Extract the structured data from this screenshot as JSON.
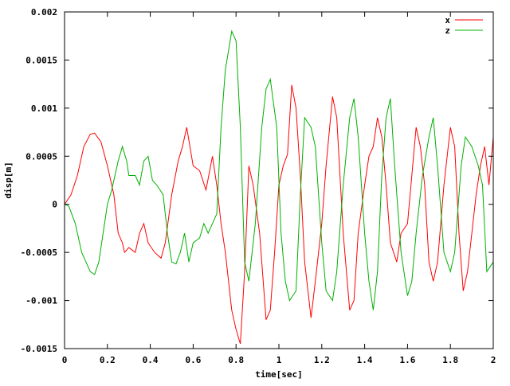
{
  "chart_data": {
    "type": "line",
    "title": "",
    "xlabel": "time[sec]",
    "ylabel": "disp[m]",
    "xlim": [
      0,
      2
    ],
    "ylim": [
      -0.0015,
      0.002
    ],
    "grid": false,
    "legend_position": "top-right",
    "x_ticks": [
      "0",
      "0.2",
      "0.4",
      "0.6",
      "0.8",
      "1",
      "1.2",
      "1.4",
      "1.6",
      "1.8",
      "2"
    ],
    "y_ticks": [
      "-0.0015",
      "-0.001",
      "-0.0005",
      "0",
      "0.0005",
      "0.001",
      "0.0015",
      "0.002"
    ],
    "x_tick_values": [
      0,
      0.2,
      0.4,
      0.6,
      0.8,
      1.0,
      1.2,
      1.4,
      1.6,
      1.8,
      2.0
    ],
    "y_tick_values": [
      -0.0015,
      -0.001,
      -0.0005,
      0,
      0.0005,
      0.001,
      0.0015,
      0.002
    ],
    "series": [
      {
        "name": "x",
        "color": "#ff0000",
        "points": [
          [
            0,
            0
          ],
          [
            0.03,
            0.0001
          ],
          [
            0.06,
            0.0003
          ],
          [
            0.09,
            0.0006
          ],
          [
            0.12,
            0.00073
          ],
          [
            0.14,
            0.00074
          ],
          [
            0.17,
            0.00065
          ],
          [
            0.2,
            0.0004
          ],
          [
            0.23,
            0.0001
          ],
          [
            0.25,
            -0.0003
          ],
          [
            0.27,
            -0.0004
          ],
          [
            0.28,
            -0.0005
          ],
          [
            0.3,
            -0.00045
          ],
          [
            0.33,
            -0.0005
          ],
          [
            0.35,
            -0.0003
          ],
          [
            0.37,
            -0.0002
          ],
          [
            0.39,
            -0.0004
          ],
          [
            0.42,
            -0.0005
          ],
          [
            0.45,
            -0.00056
          ],
          [
            0.47,
            -0.0004
          ],
          [
            0.5,
            0.0001
          ],
          [
            0.53,
            0.00045
          ],
          [
            0.55,
            0.0006
          ],
          [
            0.57,
            0.0008
          ],
          [
            0.6,
            0.0004
          ],
          [
            0.63,
            0.00035
          ],
          [
            0.66,
            0.00015
          ],
          [
            0.69,
            0.0005
          ],
          [
            0.71,
            0.0002
          ],
          [
            0.73,
            -0.0002
          ],
          [
            0.75,
            -0.0005
          ],
          [
            0.78,
            -0.0011
          ],
          [
            0.8,
            -0.0013
          ],
          [
            0.82,
            -0.00145
          ],
          [
            0.84,
            -0.0007
          ],
          [
            0.86,
            0.0004
          ],
          [
            0.88,
            0.0002
          ],
          [
            0.91,
            -0.0003
          ],
          [
            0.94,
            -0.0012
          ],
          [
            0.96,
            -0.0011
          ],
          [
            0.98,
            -0.0005
          ],
          [
            1.0,
            0.0002
          ],
          [
            1.02,
            0.0004
          ],
          [
            1.04,
            0.00052
          ],
          [
            1.06,
            0.00124
          ],
          [
            1.08,
            0.001
          ],
          [
            1.1,
            0.0003
          ],
          [
            1.12,
            -0.0006
          ],
          [
            1.15,
            -0.00118
          ],
          [
            1.17,
            -0.0008
          ],
          [
            1.2,
            -0.0002
          ],
          [
            1.22,
            0.0004
          ],
          [
            1.25,
            0.00112
          ],
          [
            1.27,
            0.0009
          ],
          [
            1.3,
            -0.0003
          ],
          [
            1.33,
            -0.0011
          ],
          [
            1.35,
            -0.001
          ],
          [
            1.37,
            -0.0003
          ],
          [
            1.4,
            0.0002
          ],
          [
            1.42,
            0.0005
          ],
          [
            1.44,
            0.0006
          ],
          [
            1.46,
            0.0009
          ],
          [
            1.48,
            0.0007
          ],
          [
            1.5,
            0.0002
          ],
          [
            1.52,
            -0.0004
          ],
          [
            1.55,
            -0.0006
          ],
          [
            1.57,
            -0.0003
          ],
          [
            1.6,
            -0.0002
          ],
          [
            1.62,
            0.0003
          ],
          [
            1.64,
            0.0008
          ],
          [
            1.66,
            0.0006
          ],
          [
            1.68,
            0.0002
          ],
          [
            1.7,
            -0.0006
          ],
          [
            1.72,
            -0.0008
          ],
          [
            1.74,
            -0.0006
          ],
          [
            1.77,
            0.0002
          ],
          [
            1.8,
            0.0008
          ],
          [
            1.82,
            0.0006
          ],
          [
            1.84,
            -0.0003
          ],
          [
            1.86,
            -0.0009
          ],
          [
            1.88,
            -0.0007
          ],
          [
            1.9,
            -0.0003
          ],
          [
            1.92,
            0.0001
          ],
          [
            1.94,
            0.0004
          ],
          [
            1.96,
            0.0006
          ],
          [
            1.98,
            0.0002
          ],
          [
            2.0,
            0.0007
          ]
        ]
      },
      {
        "name": "z",
        "color": "#00b000",
        "points": [
          [
            0,
            0
          ],
          [
            0.02,
            -2e-05
          ],
          [
            0.05,
            -0.0002
          ],
          [
            0.08,
            -0.0005
          ],
          [
            0.1,
            -0.0006
          ],
          [
            0.12,
            -0.0007
          ],
          [
            0.14,
            -0.00073
          ],
          [
            0.16,
            -0.0006
          ],
          [
            0.18,
            -0.0003
          ],
          [
            0.2,
            0
          ],
          [
            0.22,
            0.00015
          ],
          [
            0.25,
            0.00045
          ],
          [
            0.27,
            0.0006
          ],
          [
            0.29,
            0.00045
          ],
          [
            0.3,
            0.0003
          ],
          [
            0.33,
            0.0003
          ],
          [
            0.35,
            0.0002
          ],
          [
            0.37,
            0.00045
          ],
          [
            0.39,
            0.0005
          ],
          [
            0.41,
            0.00025
          ],
          [
            0.43,
            0.0002
          ],
          [
            0.46,
            0.0001
          ],
          [
            0.48,
            -0.0003
          ],
          [
            0.5,
            -0.0006
          ],
          [
            0.52,
            -0.00062
          ],
          [
            0.54,
            -0.0005
          ],
          [
            0.56,
            -0.0003
          ],
          [
            0.58,
            -0.0006
          ],
          [
            0.6,
            -0.0004
          ],
          [
            0.63,
            -0.00035
          ],
          [
            0.65,
            -0.0002
          ],
          [
            0.67,
            -0.0003
          ],
          [
            0.69,
            -0.0002
          ],
          [
            0.71,
            -0.0001
          ],
          [
            0.73,
            0.0008
          ],
          [
            0.75,
            0.0014
          ],
          [
            0.78,
            0.0018
          ],
          [
            0.8,
            0.0017
          ],
          [
            0.82,
            0.0008
          ],
          [
            0.84,
            -0.0006
          ],
          [
            0.86,
            -0.0008
          ],
          [
            0.89,
            -0.0002
          ],
          [
            0.92,
            0.0008
          ],
          [
            0.94,
            0.0012
          ],
          [
            0.96,
            0.0013
          ],
          [
            0.99,
            0.0008
          ],
          [
            1.01,
            -0.0003
          ],
          [
            1.03,
            -0.0008
          ],
          [
            1.05,
            -0.001
          ],
          [
            1.08,
            -0.0009
          ],
          [
            1.1,
            0.0001
          ],
          [
            1.12,
            0.0009
          ],
          [
            1.15,
            0.0008
          ],
          [
            1.17,
            0.0006
          ],
          [
            1.2,
            -0.0004
          ],
          [
            1.22,
            -0.0009
          ],
          [
            1.25,
            -0.001
          ],
          [
            1.27,
            -0.0007
          ],
          [
            1.3,
            0.0002
          ],
          [
            1.33,
            0.0009
          ],
          [
            1.35,
            0.0011
          ],
          [
            1.37,
            0.0007
          ],
          [
            1.4,
            -0.0003
          ],
          [
            1.42,
            -0.0008
          ],
          [
            1.44,
            -0.0011
          ],
          [
            1.46,
            -0.0007
          ],
          [
            1.48,
            0.0003
          ],
          [
            1.5,
            0.0009
          ],
          [
            1.52,
            0.0011
          ],
          [
            1.54,
            0.0004
          ],
          [
            1.57,
            -0.0005
          ],
          [
            1.6,
            -0.00095
          ],
          [
            1.62,
            -0.0008
          ],
          [
            1.64,
            -0.0003
          ],
          [
            1.67,
            0.0003
          ],
          [
            1.7,
            0.0007
          ],
          [
            1.72,
            0.0009
          ],
          [
            1.74,
            0.0004
          ],
          [
            1.77,
            -0.0005
          ],
          [
            1.8,
            -0.0007
          ],
          [
            1.82,
            -0.0005
          ],
          [
            1.85,
            0.0004
          ],
          [
            1.87,
            0.0007
          ],
          [
            1.9,
            0.0006
          ],
          [
            1.93,
            0.0004
          ],
          [
            1.95,
            0.0002
          ],
          [
            1.97,
            -0.0007
          ],
          [
            2.0,
            -0.0006
          ]
        ]
      }
    ]
  }
}
